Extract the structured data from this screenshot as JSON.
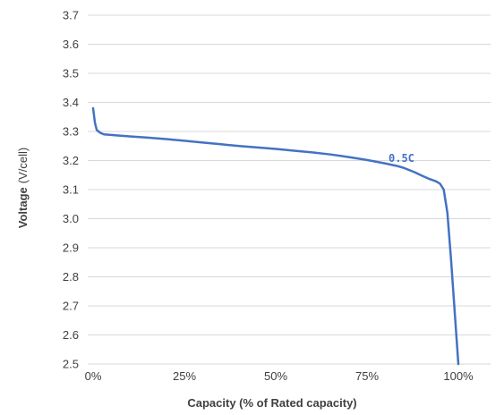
{
  "chart_data": {
    "type": "line",
    "title": "",
    "xlabel": "Capacity  (% of Rated capacity)",
    "ylabel_main": "Voltage",
    "ylabel_unit": "(V/cell)",
    "xlim": [
      0,
      100
    ],
    "ylim": [
      2.5,
      3.7
    ],
    "x_ticks": [
      0,
      25,
      50,
      75,
      100
    ],
    "x_tick_labels": [
      "0%",
      "25%",
      "50%",
      "75%",
      "100%"
    ],
    "y_ticks": [
      2.5,
      2.6,
      2.7,
      2.8,
      2.9,
      3.0,
      3.1,
      3.2,
      3.3,
      3.4,
      3.5,
      3.6,
      3.7
    ],
    "y_tick_labels": [
      "2.5",
      "2.6",
      "2.7",
      "2.8",
      "2.9",
      "3.0",
      "3.1",
      "3.2",
      "3.3",
      "3.4",
      "3.5",
      "3.6",
      "3.7"
    ],
    "grid": "horizontal",
    "series": [
      {
        "name": "0.5C",
        "color": "#4472c4",
        "x": [
          0,
          0.5,
          1,
          2,
          3,
          5,
          10,
          15,
          20,
          25,
          30,
          35,
          40,
          45,
          50,
          55,
          60,
          65,
          70,
          75,
          80,
          83,
          85,
          88,
          90,
          92,
          94,
          95,
          96,
          97,
          98,
          99,
          100
        ],
        "y": [
          3.38,
          3.33,
          3.305,
          3.295,
          3.29,
          3.288,
          3.283,
          3.279,
          3.274,
          3.268,
          3.262,
          3.256,
          3.25,
          3.245,
          3.24,
          3.234,
          3.228,
          3.221,
          3.212,
          3.202,
          3.19,
          3.182,
          3.175,
          3.16,
          3.148,
          3.137,
          3.128,
          3.12,
          3.1,
          3.02,
          2.86,
          2.68,
          2.5
        ]
      }
    ]
  }
}
